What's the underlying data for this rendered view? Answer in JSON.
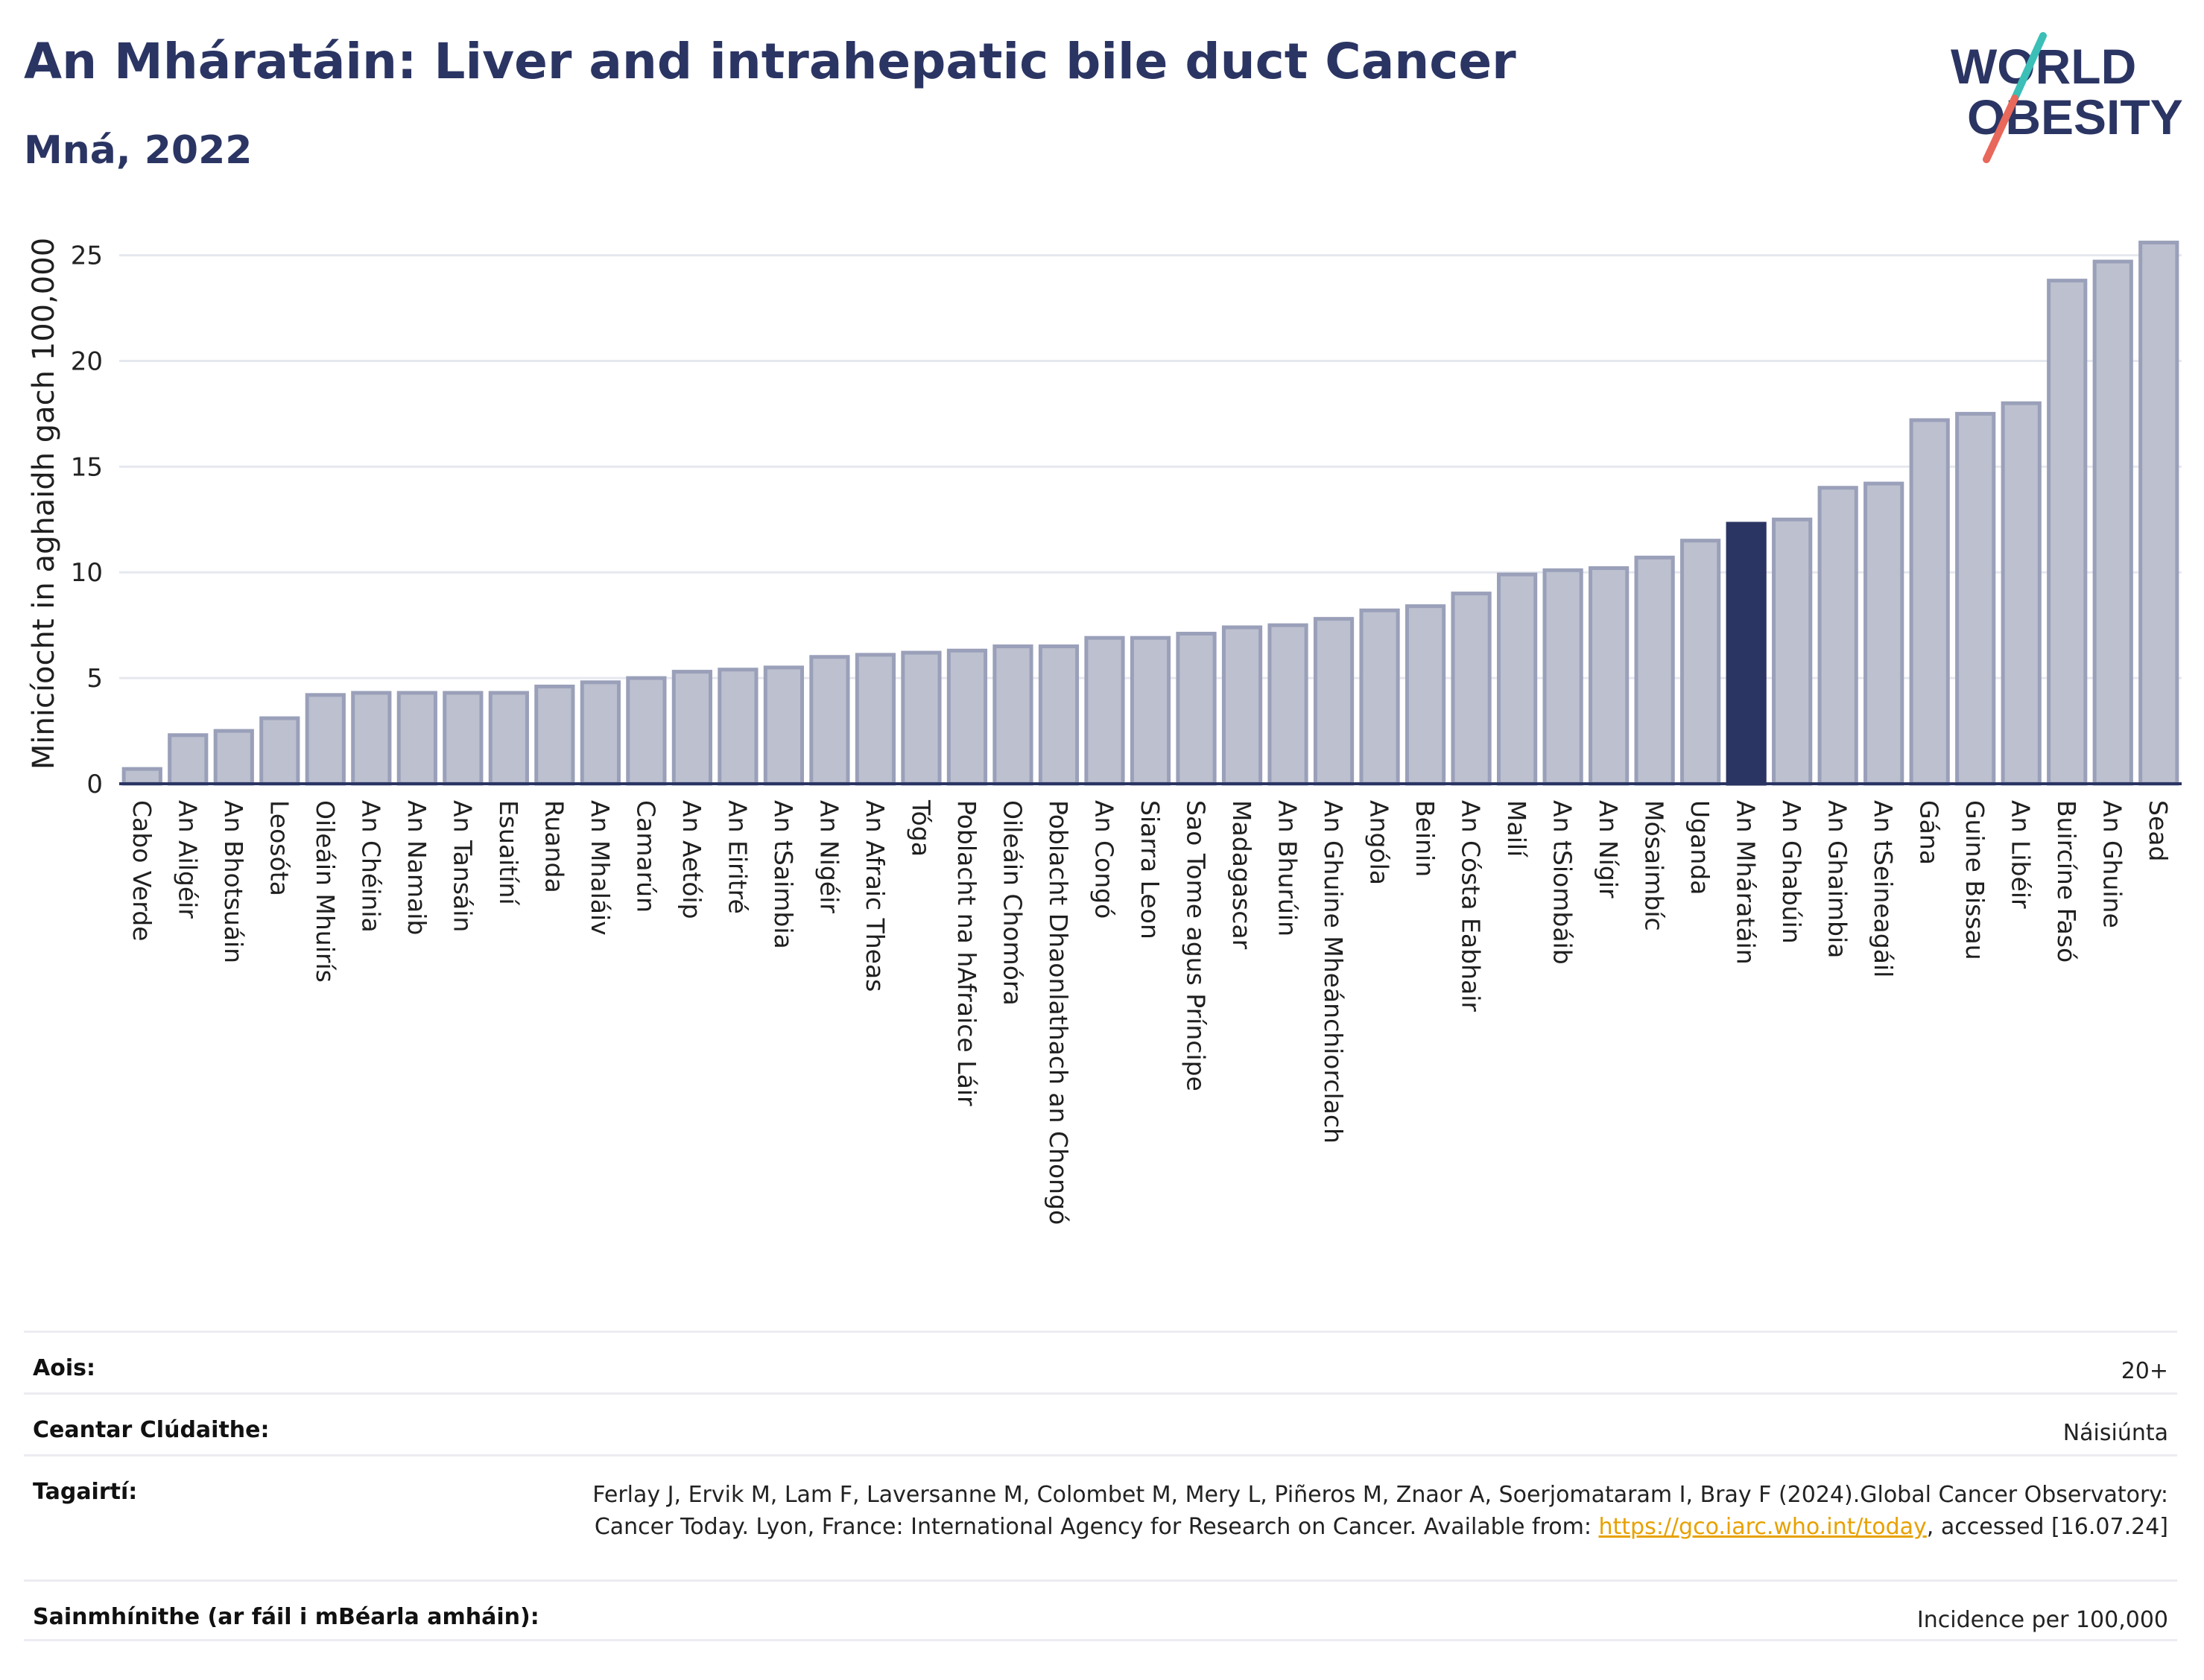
{
  "header": {
    "title": "An Mháratáin: Liver and intrahepatic bile duct Cancer",
    "subtitle": "Mná, 2022"
  },
  "logo": {
    "line1": "WORLD",
    "line2": "OBESITY",
    "text_color": "#2b3563",
    "slash_teal": "#3bbfb7",
    "slash_coral": "#e8685b"
  },
  "chart_data": {
    "type": "bar",
    "ylabel": "Minicíocht in aghaidh gach 100,000",
    "ylim": [
      0,
      26.5
    ],
    "yticks": [
      0,
      5,
      10,
      15,
      20,
      25
    ],
    "grid": true,
    "bar_color": "#bcc0cf",
    "bar_edge": "#9aa0b9",
    "highlight_color": "#2b3563",
    "highlight": "An Mháratáin",
    "categories": [
      "Cabo Verde",
      "An Ailgéir",
      "An Bhotsuáin",
      "Leosóta",
      "Oileáin Mhuirís",
      "An Chéinia",
      "An Namaib",
      "An Tansáin",
      "Esuaitíní",
      "Ruanda",
      "An Mhaláiv",
      "Camarún",
      "An Aetóip",
      "An Eiritré",
      "An tSaimbia",
      "An Nigéir",
      "An Afraic Theas",
      "Tóga",
      "Poblacht na hAfraice Láir",
      "Oileáin Chomóra",
      "Poblacht Dhaonlathach an Chongó",
      "An Congó",
      "Siarra Leon",
      "Sao Tome agus Príncipe",
      "Madagascar",
      "An Bhurúin",
      "An Ghuine Mheánchiorclach",
      "Angóla",
      "Beinin",
      "An Cósta Eabhair",
      "Mailí",
      "An tSiombáib",
      "An Nígir",
      "Mósaimbíc",
      "Uganda",
      "An Mháratáin",
      "An Ghabúin",
      "An Ghaimbia",
      "An tSeineagáil",
      "Gána",
      "Guine Bissau",
      "An Libéir",
      "Buircíne Fasó",
      "An Ghuine",
      "Sead"
    ],
    "values": [
      0.7,
      2.3,
      2.5,
      3.1,
      4.2,
      4.3,
      4.3,
      4.3,
      4.3,
      4.6,
      4.8,
      5.0,
      5.3,
      5.4,
      5.5,
      6.0,
      6.1,
      6.2,
      6.3,
      6.5,
      6.5,
      6.9,
      6.9,
      7.1,
      7.4,
      7.5,
      7.8,
      8.2,
      8.4,
      9.0,
      9.9,
      10.1,
      10.2,
      10.7,
      11.5,
      12.3,
      12.5,
      14.0,
      14.2,
      17.2,
      17.5,
      18.0,
      23.8,
      24.7,
      25.6
    ]
  },
  "info": [
    {
      "label": "Aois:",
      "value": "20+"
    },
    {
      "label": "Ceantar Clúdaithe:",
      "value": "Náisiúnta"
    },
    {
      "label": "Tagairtí:",
      "value_before": "Ferlay J, Ervik M, Lam F, Laversanne M, Colombet M, Mery L, Piñeros M, Znaor A, Soerjomataram I, Bray F (2024).Global Cancer Observatory: Cancer Today. Lyon, France: International Agency for Research on Cancer. Available from: ",
      "link": "https://gco.iarc.who.int/today",
      "value_after": ", accessed [16.07.24]"
    },
    {
      "label": "Sainmhínithe (ar fáil i mBéarla amháin):",
      "value": "Incidence per 100,000"
    }
  ]
}
